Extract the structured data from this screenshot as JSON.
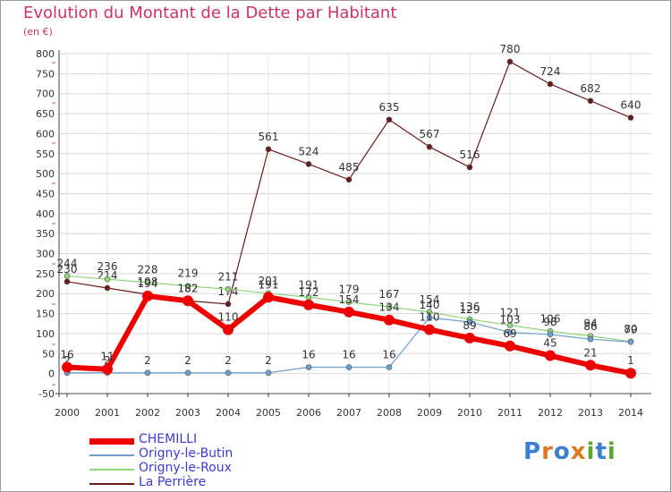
{
  "title": "Evolution du Montant de la Dette par Habitant",
  "unit": "(en €)",
  "logo": [
    "P",
    "r",
    "o",
    "x",
    "i",
    "t",
    "i"
  ],
  "logo_colors": [
    "#3a7fd0",
    "#e07a20",
    "#3a7fd0",
    "#e07a20",
    "#5aa832",
    "#3a7fd0",
    "#5aa832"
  ],
  "chart_data": {
    "type": "line",
    "title": "Evolution du Montant de la Dette par Habitant",
    "ylabel": "(en €)",
    "ylim": [
      -50,
      800
    ],
    "yticks": [
      "-50",
      "0",
      "50",
      "100",
      "150",
      "200",
      "250",
      "300",
      "350",
      "400",
      "450",
      "500",
      "550",
      "600",
      "650",
      "700",
      "750",
      "800"
    ],
    "categories": [
      "2000",
      "2001",
      "2002",
      "2003",
      "2004",
      "2005",
      "2006",
      "2007",
      "2008",
      "2009",
      "2010",
      "2011",
      "2012",
      "2013",
      "2014"
    ],
    "series": [
      {
        "name": "La Perrière",
        "color": "#6b1a1a",
        "width": 1.2,
        "labels": true,
        "values": [
          230,
          214,
          198,
          182,
          174,
          561,
          524,
          485,
          635,
          567,
          516,
          780,
          724,
          682,
          640
        ]
      },
      {
        "name": "Origny-le-Roux",
        "color": "#8fd67a",
        "width": 1.2,
        "labels": true,
        "values": [
          244,
          236,
          228,
          219,
          211,
          201,
          191,
          179,
          167,
          154,
          136,
          121,
          106,
          94,
          80
        ]
      },
      {
        "name": "Origny-le-Butin",
        "color": "#6d9fcf",
        "width": 1.2,
        "labels": true,
        "values": [
          2,
          2,
          2,
          2,
          2,
          2,
          16,
          16,
          16,
          140,
          129,
          103,
          98,
          86,
          79
        ]
      },
      {
        "name": "CHEMILLI",
        "color": "#ee0000",
        "width": 6,
        "labels": true,
        "values": [
          16,
          11,
          194,
          182,
          110,
          191,
          172,
          154,
          134,
          110,
          89,
          69,
          45,
          21,
          1
        ]
      }
    ]
  },
  "legend": [
    {
      "name": "CHEMILLI",
      "color": "#ee0000",
      "width": 7
    },
    {
      "name": "Origny-le-Butin",
      "color": "#6d9fcf",
      "width": 2
    },
    {
      "name": "Origny-le-Roux",
      "color": "#8fd67a",
      "width": 2
    },
    {
      "name": "La Perrière",
      "color": "#6b1a1a",
      "width": 2
    }
  ]
}
